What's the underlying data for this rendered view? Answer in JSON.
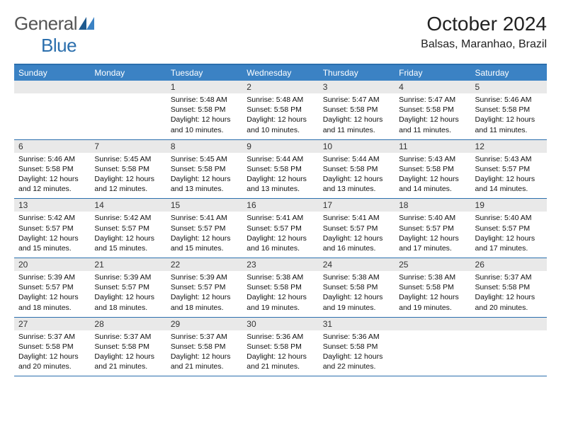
{
  "logo": {
    "word1": "General",
    "word2": "Blue"
  },
  "title": "October 2024",
  "location": "Balsas, Maranhao, Brazil",
  "colors": {
    "header_bar": "#3b82c4",
    "rule": "#2b6fad",
    "daynum_bg": "#e9e9e9",
    "tri1": "#1f5a8f",
    "tri2": "#3b82c4"
  },
  "daysOfWeek": [
    "Sunday",
    "Monday",
    "Tuesday",
    "Wednesday",
    "Thursday",
    "Friday",
    "Saturday"
  ],
  "weeks": [
    [
      {
        "n": "",
        "lines": [
          "",
          "",
          "",
          ""
        ]
      },
      {
        "n": "",
        "lines": [
          "",
          "",
          "",
          ""
        ]
      },
      {
        "n": "1",
        "lines": [
          "Sunrise: 5:48 AM",
          "Sunset: 5:58 PM",
          "Daylight: 12 hours",
          "and 10 minutes."
        ]
      },
      {
        "n": "2",
        "lines": [
          "Sunrise: 5:48 AM",
          "Sunset: 5:58 PM",
          "Daylight: 12 hours",
          "and 10 minutes."
        ]
      },
      {
        "n": "3",
        "lines": [
          "Sunrise: 5:47 AM",
          "Sunset: 5:58 PM",
          "Daylight: 12 hours",
          "and 11 minutes."
        ]
      },
      {
        "n": "4",
        "lines": [
          "Sunrise: 5:47 AM",
          "Sunset: 5:58 PM",
          "Daylight: 12 hours",
          "and 11 minutes."
        ]
      },
      {
        "n": "5",
        "lines": [
          "Sunrise: 5:46 AM",
          "Sunset: 5:58 PM",
          "Daylight: 12 hours",
          "and 11 minutes."
        ]
      }
    ],
    [
      {
        "n": "6",
        "lines": [
          "Sunrise: 5:46 AM",
          "Sunset: 5:58 PM",
          "Daylight: 12 hours",
          "and 12 minutes."
        ]
      },
      {
        "n": "7",
        "lines": [
          "Sunrise: 5:45 AM",
          "Sunset: 5:58 PM",
          "Daylight: 12 hours",
          "and 12 minutes."
        ]
      },
      {
        "n": "8",
        "lines": [
          "Sunrise: 5:45 AM",
          "Sunset: 5:58 PM",
          "Daylight: 12 hours",
          "and 13 minutes."
        ]
      },
      {
        "n": "9",
        "lines": [
          "Sunrise: 5:44 AM",
          "Sunset: 5:58 PM",
          "Daylight: 12 hours",
          "and 13 minutes."
        ]
      },
      {
        "n": "10",
        "lines": [
          "Sunrise: 5:44 AM",
          "Sunset: 5:58 PM",
          "Daylight: 12 hours",
          "and 13 minutes."
        ]
      },
      {
        "n": "11",
        "lines": [
          "Sunrise: 5:43 AM",
          "Sunset: 5:58 PM",
          "Daylight: 12 hours",
          "and 14 minutes."
        ]
      },
      {
        "n": "12",
        "lines": [
          "Sunrise: 5:43 AM",
          "Sunset: 5:57 PM",
          "Daylight: 12 hours",
          "and 14 minutes."
        ]
      }
    ],
    [
      {
        "n": "13",
        "lines": [
          "Sunrise: 5:42 AM",
          "Sunset: 5:57 PM",
          "Daylight: 12 hours",
          "and 15 minutes."
        ]
      },
      {
        "n": "14",
        "lines": [
          "Sunrise: 5:42 AM",
          "Sunset: 5:57 PM",
          "Daylight: 12 hours",
          "and 15 minutes."
        ]
      },
      {
        "n": "15",
        "lines": [
          "Sunrise: 5:41 AM",
          "Sunset: 5:57 PM",
          "Daylight: 12 hours",
          "and 15 minutes."
        ]
      },
      {
        "n": "16",
        "lines": [
          "Sunrise: 5:41 AM",
          "Sunset: 5:57 PM",
          "Daylight: 12 hours",
          "and 16 minutes."
        ]
      },
      {
        "n": "17",
        "lines": [
          "Sunrise: 5:41 AM",
          "Sunset: 5:57 PM",
          "Daylight: 12 hours",
          "and 16 minutes."
        ]
      },
      {
        "n": "18",
        "lines": [
          "Sunrise: 5:40 AM",
          "Sunset: 5:57 PM",
          "Daylight: 12 hours",
          "and 17 minutes."
        ]
      },
      {
        "n": "19",
        "lines": [
          "Sunrise: 5:40 AM",
          "Sunset: 5:57 PM",
          "Daylight: 12 hours",
          "and 17 minutes."
        ]
      }
    ],
    [
      {
        "n": "20",
        "lines": [
          "Sunrise: 5:39 AM",
          "Sunset: 5:57 PM",
          "Daylight: 12 hours",
          "and 18 minutes."
        ]
      },
      {
        "n": "21",
        "lines": [
          "Sunrise: 5:39 AM",
          "Sunset: 5:57 PM",
          "Daylight: 12 hours",
          "and 18 minutes."
        ]
      },
      {
        "n": "22",
        "lines": [
          "Sunrise: 5:39 AM",
          "Sunset: 5:57 PM",
          "Daylight: 12 hours",
          "and 18 minutes."
        ]
      },
      {
        "n": "23",
        "lines": [
          "Sunrise: 5:38 AM",
          "Sunset: 5:58 PM",
          "Daylight: 12 hours",
          "and 19 minutes."
        ]
      },
      {
        "n": "24",
        "lines": [
          "Sunrise: 5:38 AM",
          "Sunset: 5:58 PM",
          "Daylight: 12 hours",
          "and 19 minutes."
        ]
      },
      {
        "n": "25",
        "lines": [
          "Sunrise: 5:38 AM",
          "Sunset: 5:58 PM",
          "Daylight: 12 hours",
          "and 19 minutes."
        ]
      },
      {
        "n": "26",
        "lines": [
          "Sunrise: 5:37 AM",
          "Sunset: 5:58 PM",
          "Daylight: 12 hours",
          "and 20 minutes."
        ]
      }
    ],
    [
      {
        "n": "27",
        "lines": [
          "Sunrise: 5:37 AM",
          "Sunset: 5:58 PM",
          "Daylight: 12 hours",
          "and 20 minutes."
        ]
      },
      {
        "n": "28",
        "lines": [
          "Sunrise: 5:37 AM",
          "Sunset: 5:58 PM",
          "Daylight: 12 hours",
          "and 21 minutes."
        ]
      },
      {
        "n": "29",
        "lines": [
          "Sunrise: 5:37 AM",
          "Sunset: 5:58 PM",
          "Daylight: 12 hours",
          "and 21 minutes."
        ]
      },
      {
        "n": "30",
        "lines": [
          "Sunrise: 5:36 AM",
          "Sunset: 5:58 PM",
          "Daylight: 12 hours",
          "and 21 minutes."
        ]
      },
      {
        "n": "31",
        "lines": [
          "Sunrise: 5:36 AM",
          "Sunset: 5:58 PM",
          "Daylight: 12 hours",
          "and 22 minutes."
        ]
      },
      {
        "n": "",
        "lines": [
          "",
          "",
          "",
          ""
        ]
      },
      {
        "n": "",
        "lines": [
          "",
          "",
          "",
          ""
        ]
      }
    ]
  ]
}
